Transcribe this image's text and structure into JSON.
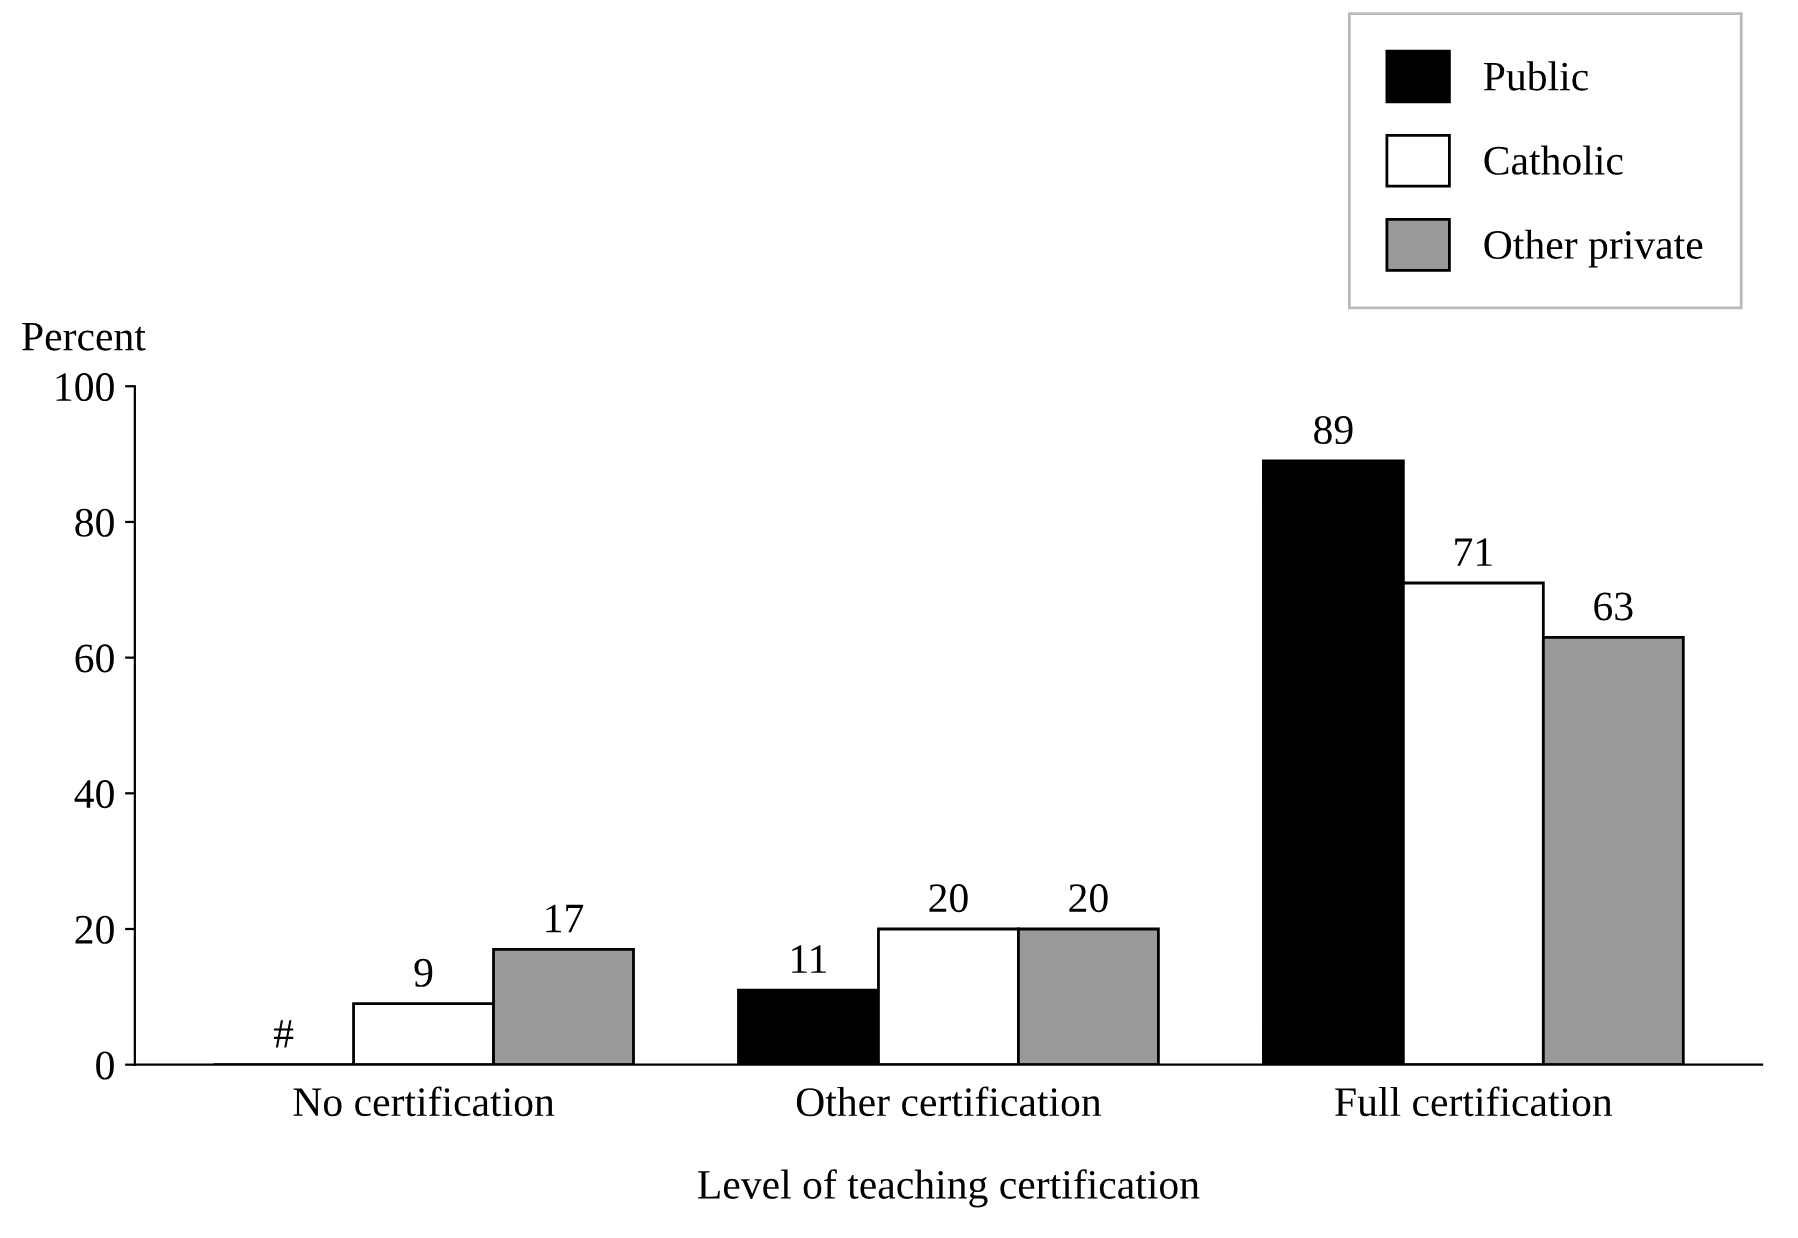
{
  "chart_data": {
    "type": "bar",
    "xlabel": "Level of teaching certification",
    "ylabel": "Percent",
    "categories": [
      "No certification",
      "Other certification",
      "Full certification"
    ],
    "series": [
      {
        "name": "Public",
        "color": "#000000",
        "values": [
          0,
          11,
          89
        ],
        "value_labels": [
          "#",
          "11",
          "89"
        ]
      },
      {
        "name": "Catholic",
        "color": "#ffffff",
        "values": [
          9,
          20,
          71
        ],
        "value_labels": [
          "9",
          "20",
          "71"
        ]
      },
      {
        "name": "Other private",
        "color": "#999999",
        "values": [
          17,
          20,
          63
        ],
        "value_labels": [
          "17",
          "20",
          "63"
        ]
      }
    ],
    "ylim": [
      0,
      100
    ],
    "yticks": [
      0,
      20,
      40,
      60,
      80,
      100
    ],
    "grid": false,
    "legend": "top right"
  }
}
